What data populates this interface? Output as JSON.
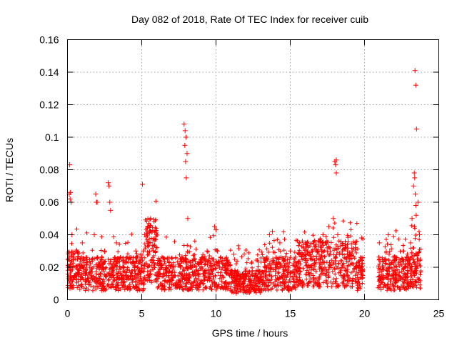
{
  "chart_data": {
    "type": "scatter",
    "title": "Day 082 of 2018, Rate Of TEC Index for receiver cuib",
    "xlabel": "GPS time / hours",
    "ylabel": "ROTI / TECUs",
    "xlim": [
      0,
      25
    ],
    "ylim": [
      0,
      0.16
    ],
    "x_ticks": [
      0,
      5,
      10,
      15,
      20,
      25
    ],
    "y_ticks": [
      0,
      0.02,
      0.04,
      0.06,
      0.08,
      0.1,
      0.12,
      0.14,
      0.16
    ],
    "x_tick_labels": [
      "0",
      "5",
      "10",
      "15",
      "20",
      "25"
    ],
    "y_tick_labels": [
      "0",
      "0.02",
      "0.04",
      "0.06",
      "0.08",
      "0.1",
      "0.12",
      "0.14",
      "0.16"
    ],
    "grid": true,
    "marker": "plus",
    "series_color": "#ff0000",
    "x": [
      0.1,
      0.15,
      0.2,
      0.25,
      0.3,
      0.4,
      0.6,
      0.8,
      1.0,
      1.2,
      1.5,
      1.8,
      1.9,
      2.0,
      2.2,
      2.5,
      2.8,
      2.85,
      2.9,
      3.0,
      3.3,
      3.6,
      4.0,
      4.3,
      4.6,
      5.0,
      5.1,
      5.2,
      5.4,
      5.5,
      5.6,
      5.8,
      6.0,
      6.3,
      6.6,
      7.0,
      7.3,
      7.6,
      7.85,
      7.9,
      7.95,
      8.0,
      8.1,
      8.3,
      8.6,
      9.0,
      9.3,
      9.6,
      9.9,
      10.0,
      10.1,
      10.3,
      10.6,
      11.0,
      11.2,
      11.5,
      12.0,
      12.5,
      13.0,
      13.4,
      13.6,
      13.8,
      14.0,
      14.3,
      14.6,
      15.0,
      15.3,
      15.6,
      16.0,
      16.4,
      16.8,
      17.2,
      17.6,
      17.9,
      18.0,
      18.1,
      18.2,
      18.5,
      18.8,
      19.2,
      19.6,
      19.8,
      21.0,
      21.2,
      21.4,
      21.6,
      22.0,
      22.3,
      22.6,
      22.9,
      23.1,
      23.2,
      23.3,
      23.35,
      23.4,
      23.45,
      23.5,
      23.6,
      23.7,
      0.5,
      1.3,
      2.4,
      3.8,
      4.8,
      6.8,
      8.8,
      9.4,
      12.2,
      13.2,
      14.9,
      16.6,
      17.4,
      19.0,
      21.8,
      22.8,
      0.12,
      0.18,
      1.95,
      2.75,
      5.05,
      7.92,
      7.98,
      8.05,
      18.1,
      18.05,
      23.38,
      23.42,
      23.45,
      23.48,
      23.36
    ],
    "y": [
      0.02,
      0.083,
      0.066,
      0.06,
      0.04,
      0.025,
      0.03,
      0.018,
      0.035,
      0.015,
      0.02,
      0.04,
      0.065,
      0.06,
      0.02,
      0.03,
      0.07,
      0.06,
      0.055,
      0.02,
      0.035,
      0.015,
      0.025,
      0.015,
      0.03,
      0.02,
      0.03,
      0.04,
      0.045,
      0.035,
      0.05,
      0.02,
      0.015,
      0.02,
      0.012,
      0.015,
      0.01,
      0.02,
      0.108,
      0.095,
      0.085,
      0.075,
      0.05,
      0.02,
      0.015,
      0.025,
      0.018,
      0.02,
      0.045,
      0.043,
      0.03,
      0.015,
      0.01,
      0.015,
      0.028,
      0.01,
      0.015,
      0.008,
      0.012,
      0.02,
      0.04,
      0.042,
      0.02,
      0.035,
      0.015,
      0.03,
      0.025,
      0.02,
      0.035,
      0.025,
      0.03,
      0.04,
      0.045,
      0.05,
      0.085,
      0.078,
      0.04,
      0.03,
      0.025,
      0.03,
      0.02,
      0.038,
      0.035,
      0.02,
      0.025,
      0.04,
      0.02,
      0.015,
      0.03,
      0.018,
      0.035,
      0.05,
      0.07,
      0.078,
      0.141,
      0.132,
      0.105,
      0.06,
      0.04,
      0.015,
      0.025,
      0.01,
      0.02,
      0.012,
      0.015,
      0.018,
      0.03,
      0.006,
      0.014,
      0.02,
      0.022,
      0.035,
      0.025,
      0.015,
      0.012,
      0.065,
      0.062,
      0.06,
      0.072,
      0.071,
      0.104,
      0.1,
      0.09,
      0.086,
      0.083,
      0.075,
      0.065,
      0.058,
      0.052,
      0.045
    ]
  }
}
